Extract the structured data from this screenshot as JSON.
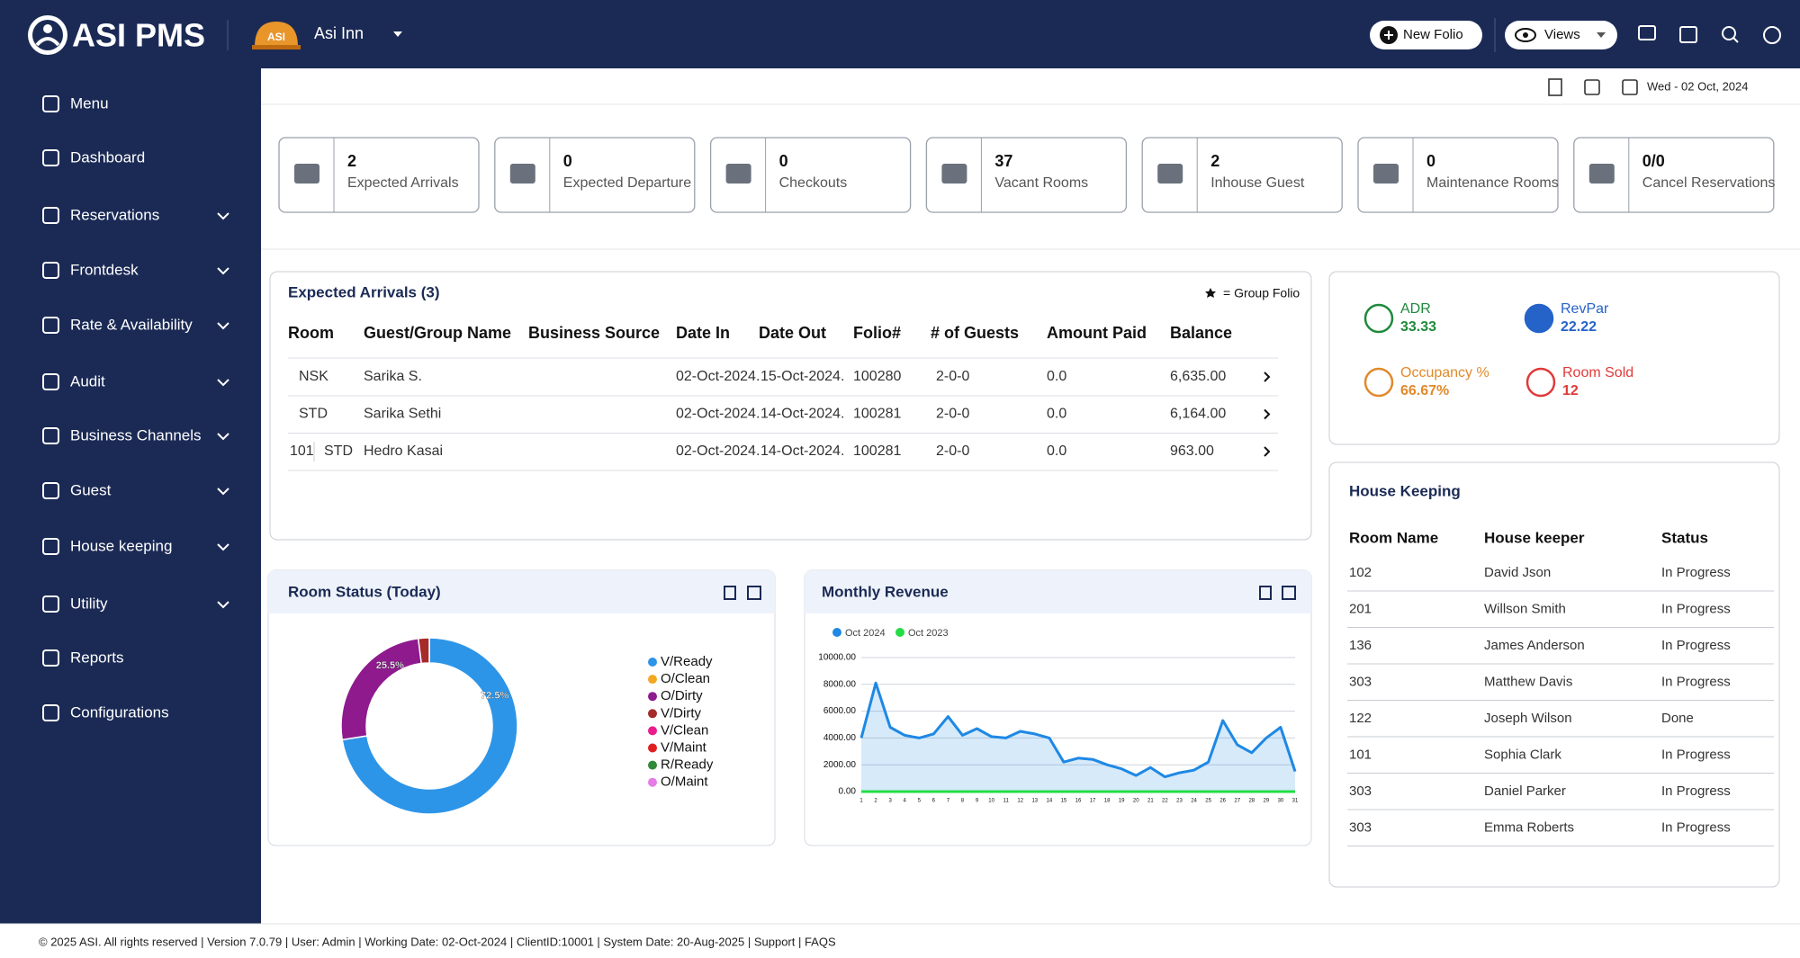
{
  "header": {
    "brand": "ASI PMS",
    "logo_badge": "ASI",
    "hotel": "Asi Inn",
    "new_folio": "New Folio",
    "views": "Views"
  },
  "date": "Wed - 02 Oct, 2024",
  "sidebar": [
    {
      "label": "Menu",
      "expandable": false
    },
    {
      "label": "Dashboard",
      "expandable": false
    },
    {
      "label": "Reservations",
      "expandable": true
    },
    {
      "label": "Frontdesk",
      "expandable": true
    },
    {
      "label": "Rate & Availability",
      "expandable": true
    },
    {
      "label": "Audit",
      "expandable": true
    },
    {
      "label": "Business Channels",
      "expandable": true
    },
    {
      "label": "Guest",
      "expandable": true
    },
    {
      "label": "House keeping",
      "expandable": true
    },
    {
      "label": "Utility",
      "expandable": true
    },
    {
      "label": "Reports",
      "expandable": false
    },
    {
      "label": "Configurations",
      "expandable": false
    }
  ],
  "stats": [
    {
      "value": 2,
      "label": "Expected Arrivals"
    },
    {
      "value": 0,
      "label": "Expected Departure"
    },
    {
      "value": 0,
      "label": "Checkouts"
    },
    {
      "value": 37,
      "label": "Vacant Rooms"
    },
    {
      "value": 2,
      "label": "Inhouse Guest"
    },
    {
      "value": 0,
      "label": "Maintenance Rooms"
    },
    {
      "value": "0/0",
      "label": "Cancel Reservations"
    }
  ],
  "arrivals": {
    "title": "Expected Arrivals (3)",
    "legend": "= Group Folio",
    "columns": [
      "Room",
      "Guest/Group Name",
      "Business Source",
      "Date In",
      "Date Out",
      "Folio#",
      "# of Guests",
      "Amount Paid",
      "Balance"
    ],
    "rows": [
      {
        "room": "NSK",
        "guest": "Sarika S.",
        "date_in": "02-Oct-2024.",
        "date_out": "15-Oct-2024.",
        "folio": "100280",
        "guests": "2-0-0",
        "paid": "0.0",
        "balance": "6,635.00"
      },
      {
        "room": "STD",
        "guest": "Sarika Sethi",
        "date_in": "02-Oct-2024.",
        "date_out": "14-Oct-2024.",
        "folio": "100281",
        "guests": "2-0-0",
        "paid": "0.0",
        "balance": "6,164.00"
      },
      {
        "room_no": "101",
        "room": "STD",
        "guest": "Hedro Kasai",
        "date_in": "02-Oct-2024.",
        "date_out": "14-Oct-2024.",
        "folio": "100281",
        "guests": "2-0-0",
        "paid": "0.0",
        "balance": "963.00"
      }
    ]
  },
  "kpis": [
    {
      "label": "ADR",
      "value": "33.33",
      "color": "#1e8a3c"
    },
    {
      "label": "RevPar",
      "value": "22.22",
      "color": "#2563c9"
    },
    {
      "label": "Occupancy %",
      "value": "66.67%",
      "color": "#e08a2c"
    },
    {
      "label": "Room Sold",
      "value": "12",
      "color": "#e03a3a"
    }
  ],
  "housekeeping": {
    "title": "House Keeping",
    "columns": [
      "Room Name",
      "House keeper",
      "Status"
    ],
    "rows": [
      [
        "102",
        "David Json",
        "In Progress"
      ],
      [
        "201",
        "Willson Smith",
        "In Progress"
      ],
      [
        "136",
        "James Anderson",
        "In Progress"
      ],
      [
        "303",
        "Matthew Davis",
        "In Progress"
      ],
      [
        "122",
        "Joseph Wilson",
        "Done"
      ],
      [
        "101",
        "Sophia Clark",
        "In Progress"
      ],
      [
        "303",
        "Daniel Parker",
        "In Progress"
      ],
      [
        "303",
        "Emma Roberts",
        "In Progress"
      ]
    ]
  },
  "room_status": {
    "type": "pie",
    "donut": true,
    "title": "Room Status (Today)",
    "categories": [
      "V/Ready",
      "O/Clean",
      "O/Dirty",
      "V/Dirty",
      "V/Clean",
      "V/Maint",
      "R/Ready",
      "O/Maint"
    ],
    "colors": [
      "#2d95e8",
      "#f5a623",
      "#8e1a8e",
      "#a52a2a",
      "#e91e8c",
      "#e02020",
      "#2e8b3a",
      "#e67de6"
    ],
    "values": [
      72.5,
      0,
      25.5,
      2,
      0,
      0,
      0,
      0
    ],
    "value_labels": [
      "72.5%",
      null,
      "25.5%",
      null,
      null,
      null,
      null,
      null
    ]
  },
  "monthly_revenue": {
    "type": "line",
    "title": "Monthly Revenue",
    "area": true,
    "grid": true,
    "categories": [
      1,
      2,
      3,
      4,
      5,
      6,
      7,
      8,
      9,
      10,
      11,
      12,
      13,
      14,
      15,
      16,
      17,
      18,
      19,
      20,
      21,
      22,
      23,
      24,
      25,
      26,
      27,
      28,
      29,
      30,
      31
    ],
    "series": [
      {
        "name": "Oct 2024",
        "color": "#1e88e5",
        "values": [
          4000,
          8100,
          4800,
          4200,
          4000,
          4300,
          5600,
          4200,
          4700,
          4100,
          4000,
          4500,
          4300,
          4000,
          2200,
          2500,
          2400,
          2000,
          1700,
          1200,
          1800,
          1100,
          1400,
          1600,
          2200,
          5300,
          3500,
          2900,
          4000,
          4800,
          1500
        ]
      },
      {
        "name": "Oct 2023",
        "color": "#22dd44",
        "values": [
          0,
          0,
          0,
          0,
          0,
          0,
          0,
          0,
          0,
          0,
          0,
          0,
          0,
          0,
          0,
          0,
          0,
          0,
          0,
          0,
          0,
          0,
          0,
          0,
          0,
          0,
          0,
          0,
          0,
          0,
          0
        ]
      }
    ],
    "ylim": [
      0,
      10000
    ],
    "yticks": [
      {
        "value": 0,
        "label": "0.00"
      },
      {
        "value": 2000,
        "label": "2000.00"
      },
      {
        "value": 4000,
        "label": "4000.00"
      },
      {
        "value": 6000,
        "label": "6000.00"
      },
      {
        "value": 8000,
        "label": "8000.00"
      },
      {
        "value": 10000,
        "label": "10000.00"
      }
    ]
  },
  "footer": "© 2025 ASI. All rights reserved | Version 7.0.79 | User: Admin | Working Date: 02-Oct-2024 | ClientID:10001 | System Date: 20-Aug-2025 | Support | FAQS"
}
